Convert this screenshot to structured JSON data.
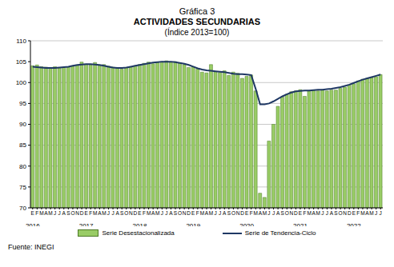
{
  "chart_data": {
    "type": "bar",
    "figure_label": "Gráfica 3",
    "title": "ACTIVIDADES SECUNDARIAS",
    "subtitle": "(Índice 2013=100)",
    "source": "Fuente: INEGI",
    "categories": [
      "E",
      "F",
      "M",
      "A",
      "M",
      "J",
      "J",
      "A",
      "S",
      "O",
      "N",
      "D",
      "E",
      "F",
      "M",
      "A",
      "M",
      "J",
      "J",
      "A",
      "S",
      "O",
      "N",
      "D",
      "E",
      "F",
      "M",
      "A",
      "M",
      "J",
      "J",
      "A",
      "S",
      "O",
      "N",
      "D",
      "E",
      "F",
      "M",
      "A",
      "M",
      "J",
      "J",
      "A",
      "S",
      "O",
      "N",
      "D",
      "E",
      "F",
      "M",
      "A",
      "M",
      "J",
      "J",
      "A",
      "S",
      "O",
      "N",
      "D",
      "E",
      "F",
      "M",
      "A",
      "M",
      "J",
      "J",
      "A",
      "S",
      "O",
      "N",
      "D",
      "E",
      "F",
      "M",
      "A",
      "M",
      "J",
      "J"
    ],
    "year_categories": [
      "2016",
      null,
      null,
      null,
      null,
      null,
      null,
      null,
      null,
      null,
      null,
      null,
      "2017",
      null,
      null,
      null,
      null,
      null,
      null,
      null,
      null,
      null,
      null,
      null,
      "2018",
      null,
      null,
      null,
      null,
      null,
      null,
      null,
      null,
      null,
      null,
      null,
      "2019",
      null,
      null,
      null,
      null,
      null,
      null,
      null,
      null,
      null,
      null,
      null,
      "2020",
      null,
      null,
      null,
      null,
      null,
      null,
      null,
      null,
      null,
      null,
      null,
      "2021",
      null,
      null,
      null,
      null,
      null,
      null,
      null,
      null,
      null,
      null,
      null,
      "2022",
      null,
      null,
      null,
      null,
      null,
      null
    ],
    "series": [
      {
        "name": "Serie Desestacionalizada",
        "type": "bar",
        "color": "#99cc66",
        "values": [
          104.0,
          104.2,
          103.8,
          103.7,
          103.6,
          103.8,
          103.5,
          103.6,
          103.7,
          103.9,
          104.1,
          104.9,
          104.4,
          104.2,
          104.8,
          104.0,
          104.3,
          103.9,
          103.7,
          103.5,
          103.2,
          103.6,
          103.8,
          104.0,
          104.3,
          104.6,
          104.9,
          104.5,
          104.8,
          105.0,
          105.2,
          104.9,
          105.0,
          104.7,
          104.3,
          103.6,
          103.8,
          103.2,
          102.5,
          102.3,
          104.3,
          102.6,
          102.4,
          102.8,
          101.7,
          102.5,
          102.2,
          101.0,
          101.5,
          101.8,
          98.0,
          73.5,
          72.5,
          86.0,
          90.0,
          94.3,
          96.5,
          97.2,
          97.8,
          98.0,
          98.3,
          96.7,
          98.0,
          98.2,
          98.0,
          98.3,
          98.0,
          98.2,
          98.2,
          98.6,
          98.9,
          99.4,
          99.7,
          100.4,
          100.8,
          101.0,
          101.2,
          101.4,
          101.9
        ]
      },
      {
        "name": "Serie de Tendencia-Ciclo",
        "type": "line",
        "color": "#1f3864",
        "values": [
          103.8,
          103.7,
          103.6,
          103.5,
          103.5,
          103.5,
          103.6,
          103.7,
          103.8,
          104.0,
          104.2,
          104.3,
          104.4,
          104.4,
          104.3,
          104.2,
          104.0,
          103.8,
          103.6,
          103.5,
          103.5,
          103.6,
          103.8,
          104.0,
          104.2,
          104.4,
          104.6,
          104.8,
          104.9,
          105.0,
          105.0,
          105.0,
          104.9,
          104.7,
          104.5,
          104.2,
          103.8,
          103.4,
          103.1,
          102.9,
          102.8,
          102.7,
          102.6,
          102.5,
          102.3,
          102.1,
          102.0,
          102.0,
          101.9,
          101.8,
          98.5,
          94.8,
          94.8,
          95.0,
          95.5,
          96.1,
          96.7,
          97.2,
          97.6,
          97.9,
          98.0,
          98.1,
          98.1,
          98.2,
          98.3,
          98.3,
          98.4,
          98.5,
          98.7,
          98.9,
          99.2,
          99.5,
          99.9,
          100.3,
          100.7,
          101.0,
          101.3,
          101.6,
          101.9
        ]
      }
    ],
    "ylim": [
      70,
      110
    ],
    "yticks": [
      70,
      75,
      80,
      85,
      90,
      95,
      100,
      105,
      110
    ],
    "grid": true,
    "legend": "bottom"
  }
}
